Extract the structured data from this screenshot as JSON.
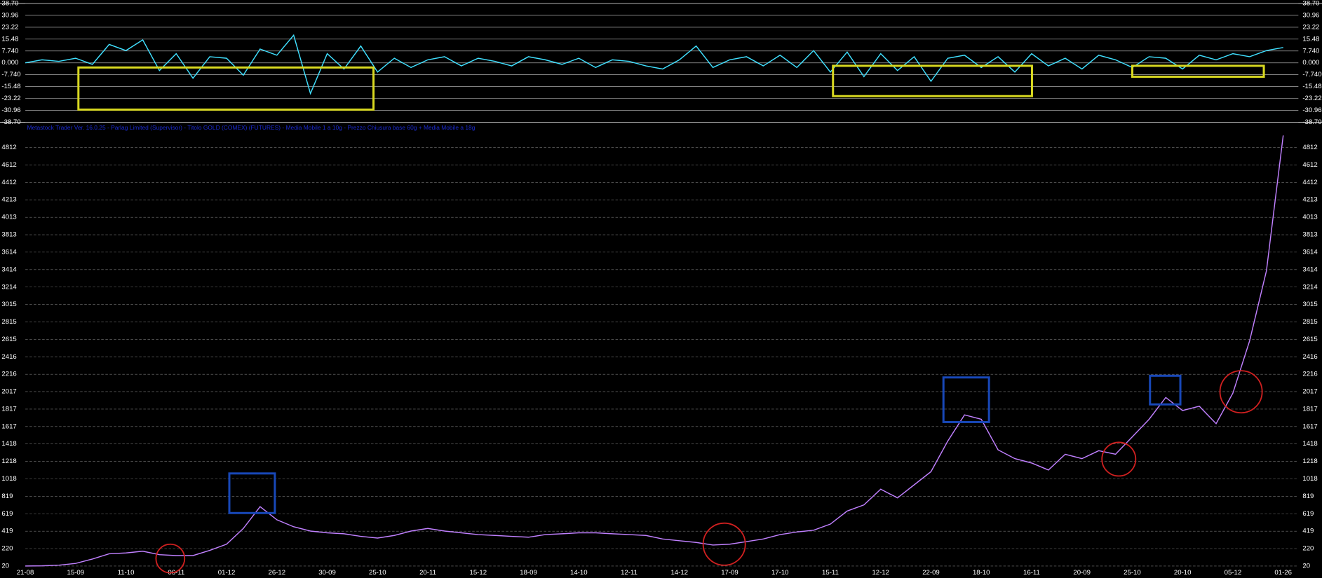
{
  "chart_data": [
    {
      "type": "line",
      "ylim": [
        -38.7,
        38.7
      ],
      "yticks": [
        {
          "value": 38.7,
          "label": "38.70"
        },
        30.96,
        23.22,
        15.48,
        {
          "value": 7.74,
          "label": "7.740"
        },
        {
          "value": 0,
          "label": "0.000"
        },
        {
          "value": -7.74,
          "label": "-7.740"
        },
        -15.48,
        -23.22,
        -30.96,
        {
          "value": -38.7,
          "label": "-38.70"
        }
      ],
      "series": [
        {
          "color": "#40e0ff",
          "values": [
            0,
            2,
            1,
            3,
            -1,
            12,
            8,
            15,
            -5,
            6,
            -10,
            4,
            3,
            -8,
            9,
            5,
            18,
            -20,
            6,
            -4,
            11,
            -6,
            3,
            -3,
            2,
            4,
            -2,
            3,
            1,
            -2,
            4,
            2,
            -1,
            3,
            -3,
            2,
            1,
            -2,
            -4,
            2,
            11,
            -3,
            2,
            4,
            -2,
            5,
            -3,
            8,
            -6,
            7,
            -9,
            6,
            -5,
            4,
            -12,
            3,
            5,
            -3,
            4,
            -6,
            6,
            -2,
            3,
            -4,
            5,
            2,
            -3,
            4,
            3,
            -4,
            5,
            2,
            6,
            4,
            8,
            10
          ]
        }
      ]
    },
    {
      "type": "line",
      "title": "Metastock Trader Ver. 16.0.25 - Parlag Limited (Supervisor) - Titolo GOLD (COMEX) (FUTURES) - Media Mobile 1 a 10g - Prezzo Chiusura base 60g + Media Mobile a 18g",
      "ylim": [
        0,
        5050
      ],
      "yticks": [
        20,
        220,
        419,
        619,
        819,
        1018,
        1218,
        1418,
        1617,
        1817,
        2017,
        2216,
        2416,
        2615,
        2815,
        3015,
        3214,
        3414,
        3614,
        3813,
        4013,
        4213,
        4412,
        4612,
        4812
      ],
      "grid": true,
      "categories": [
        "21-08",
        null,
        null,
        "15-09",
        null,
        null,
        "11-10",
        null,
        null,
        "06-11",
        null,
        null,
        "01-12",
        null,
        null,
        "26-12",
        null,
        null,
        "30-09",
        null,
        null,
        "25-10",
        null,
        null,
        "20-11",
        null,
        null,
        "15-12",
        null,
        null,
        "18-09",
        null,
        null,
        "14-10",
        null,
        null,
        "12-11",
        null,
        null,
        "14-12",
        null,
        null,
        "17-09",
        null,
        null,
        "17-10",
        null,
        null,
        "15-11",
        null,
        null,
        "12-12",
        null,
        null,
        "22-09",
        null,
        null,
        "18-10",
        null,
        null,
        "16-11",
        null,
        null,
        "20-09",
        null,
        null,
        "25-10",
        null,
        null,
        "20-10",
        null,
        null,
        "05-12",
        null,
        null,
        "01-26"
      ],
      "series": [
        {
          "color": "#c080ff",
          "values": [
            20,
            22,
            30,
            50,
            100,
            160,
            170,
            190,
            150,
            140,
            140,
            200,
            270,
            450,
            700,
            550,
            470,
            420,
            400,
            390,
            360,
            340,
            370,
            420,
            450,
            420,
            400,
            380,
            370,
            360,
            350,
            380,
            390,
            400,
            400,
            390,
            380,
            370,
            330,
            310,
            290,
            260,
            270,
            300,
            330,
            380,
            410,
            430,
            500,
            650,
            720,
            900,
            800,
            950,
            1100,
            1450,
            1750,
            1700,
            1350,
            1250,
            1200,
            1120,
            1300,
            1250,
            1340,
            1300,
            1500,
            1700,
            1950,
            1800,
            1850,
            1650,
            2000,
            2600,
            3400,
            4950
          ]
        }
      ]
    }
  ]
}
